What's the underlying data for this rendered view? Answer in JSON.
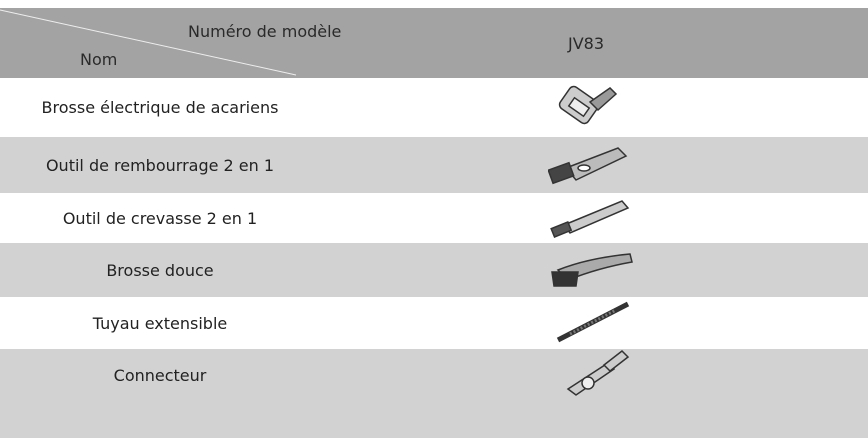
{
  "header": {
    "model_label": "Numéro de modèle",
    "name_label": "Nom",
    "model": "JV83"
  },
  "table": {
    "rows": [
      "Brosse électrique de acariens",
      "Outil de rembourrage 2 en 1",
      "Outil de crevasse 2 en 1",
      "Brosse douce",
      "Tuyau extensible",
      "Connecteur"
    ]
  }
}
